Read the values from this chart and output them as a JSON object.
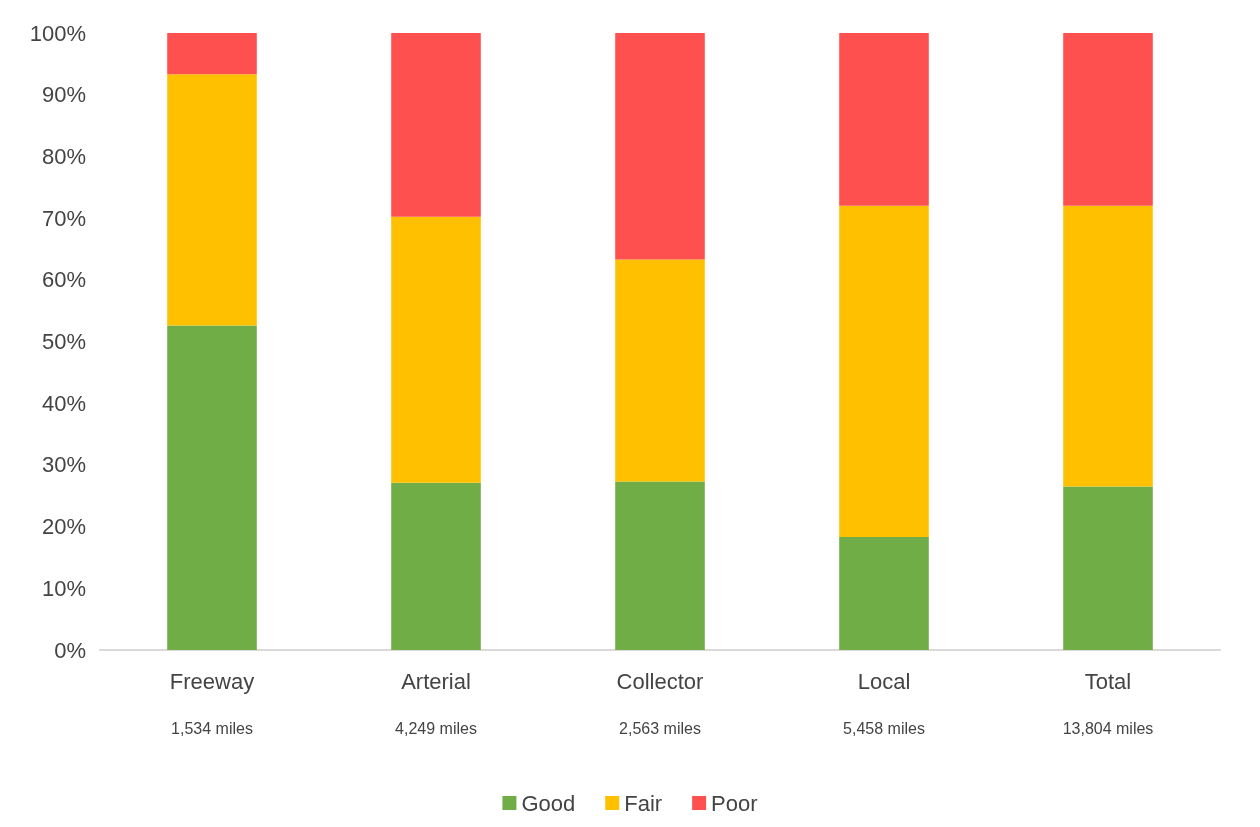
{
  "chart_data": {
    "type": "bar",
    "stacked": true,
    "categories": [
      "Freeway",
      "Arterial",
      "Collector",
      "Local",
      "Total"
    ],
    "series": [
      {
        "name": "Good",
        "color": "#70ad47",
        "values": [
          52.6,
          27.1,
          27.3,
          18.3,
          26.5
        ]
      },
      {
        "name": "Fair",
        "color": "#ffc000",
        "values": [
          40.7,
          43.1,
          36.0,
          53.7,
          45.5
        ]
      },
      {
        "name": "Poor",
        "color": "#ff5050",
        "values": [
          6.7,
          29.8,
          36.7,
          28.0,
          28.0
        ]
      }
    ],
    "ylim": [
      0,
      100
    ],
    "yticks": [
      {
        "value": 0,
        "label": "0%"
      },
      {
        "value": 10,
        "label": "10%"
      },
      {
        "value": 20,
        "label": "20%"
      },
      {
        "value": 30,
        "label": "30%"
      },
      {
        "value": 40,
        "label": "40%"
      },
      {
        "value": 50,
        "label": "50%"
      },
      {
        "value": 60,
        "label": "60%"
      },
      {
        "value": 70,
        "label": "70%"
      },
      {
        "value": 80,
        "label": "80%"
      },
      {
        "value": 90,
        "label": "90%"
      },
      {
        "value": 100,
        "label": "100%"
      }
    ],
    "annotations": [
      "1,534 miles",
      "4,249 miles",
      "2,563 miles",
      "5,458 miles",
      "13,804 miles"
    ],
    "grid": false,
    "legend": "bottom"
  }
}
